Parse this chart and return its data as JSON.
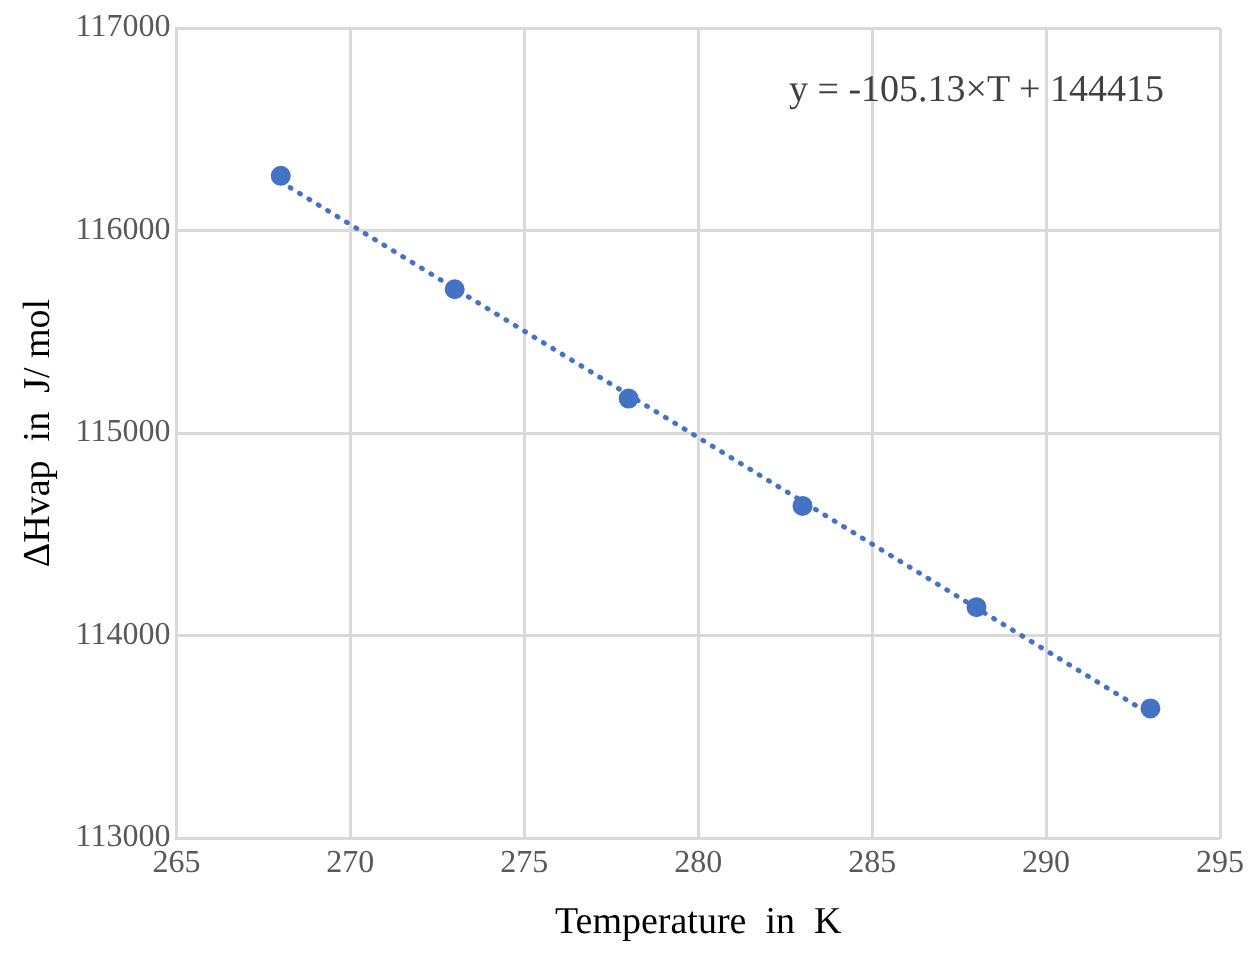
{
  "chart_data": {
    "type": "scatter",
    "xlabel": "Temperature  in  K",
    "ylabel": "ΔHvap  in  J/ mol",
    "annotations": [
      "y = -105.13×T + 144415"
    ],
    "series": [
      {
        "type": "scatter",
        "color": "#4472c4",
        "x": [
          268,
          273,
          278,
          283,
          288,
          293
        ],
        "values": [
          116270,
          115710,
          115170,
          114640,
          114140,
          113640
        ],
        "marker": "circle"
      },
      {
        "type": "line",
        "color": "#4472c4",
        "x": [
          268,
          293
        ],
        "values": [
          116240,
          113610
        ],
        "line_style": "dotted",
        "marker": "none"
      }
    ],
    "xlim": [
      265,
      295
    ],
    "xticks": [
      265,
      270,
      275,
      280,
      285,
      290,
      295
    ],
    "ylim": [
      113000,
      117000
    ],
    "yticks": [
      113000,
      114000,
      115000,
      116000,
      117000
    ],
    "grid": true,
    "legend": false
  }
}
